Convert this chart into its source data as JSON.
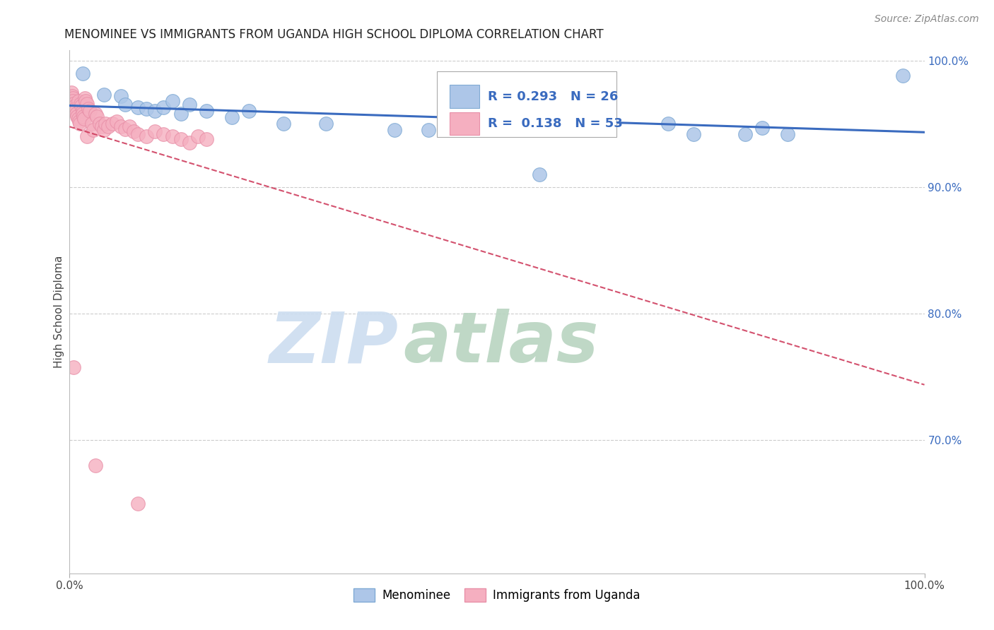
{
  "title": "MENOMINEE VS IMMIGRANTS FROM UGANDA HIGH SCHOOL DIPLOMA CORRELATION CHART",
  "source_text": "Source: ZipAtlas.com",
  "ylabel": "High School Diploma",
  "x_min": 0.0,
  "x_max": 1.0,
  "y_min": 0.595,
  "y_max": 1.008,
  "y_tick_positions_right": [
    1.0,
    0.9,
    0.8,
    0.7
  ],
  "y_tick_labels_right": [
    "100.0%",
    "90.0%",
    "80.0%",
    "70.0%"
  ],
  "menominee_color": "#adc6e8",
  "uganda_color": "#f5afc0",
  "menominee_edge": "#80aad4",
  "uganda_edge": "#e890a8",
  "trend_blue": "#3a6bbf",
  "trend_pink": "#cc3355",
  "legend_label_blue": "Menominee",
  "legend_label_pink": "Immigrants from Uganda",
  "background_color": "#ffffff",
  "grid_color": "#cccccc",
  "watermark_zip_color": "#ccddf0",
  "watermark_atlas_color": "#b8d4c0",
  "menominee_x": [
    0.015,
    0.04,
    0.06,
    0.065,
    0.08,
    0.09,
    0.1,
    0.11,
    0.12,
    0.13,
    0.14,
    0.16,
    0.19,
    0.21,
    0.25,
    0.3,
    0.38,
    0.42,
    0.55,
    0.61,
    0.7,
    0.73,
    0.79,
    0.81,
    0.84,
    0.975
  ],
  "menominee_y": [
    0.99,
    0.973,
    0.972,
    0.965,
    0.963,
    0.962,
    0.96,
    0.963,
    0.968,
    0.958,
    0.965,
    0.96,
    0.955,
    0.96,
    0.95,
    0.95,
    0.945,
    0.945,
    0.91,
    0.963,
    0.95,
    0.942,
    0.942,
    0.947,
    0.942,
    0.988
  ],
  "uganda_x": [
    0.002,
    0.003,
    0.004,
    0.004,
    0.005,
    0.006,
    0.006,
    0.007,
    0.008,
    0.009,
    0.01,
    0.01,
    0.011,
    0.012,
    0.013,
    0.014,
    0.015,
    0.015,
    0.016,
    0.017,
    0.018,
    0.019,
    0.02,
    0.02,
    0.022,
    0.024,
    0.026,
    0.028,
    0.03,
    0.032,
    0.035,
    0.038,
    0.04,
    0.042,
    0.045,
    0.05,
    0.055,
    0.06,
    0.065,
    0.07,
    0.075,
    0.08,
    0.09,
    0.1,
    0.11,
    0.12,
    0.13,
    0.14,
    0.15,
    0.16,
    0.005,
    0.03,
    0.08
  ],
  "uganda_y": [
    0.975,
    0.972,
    0.97,
    0.968,
    0.966,
    0.964,
    0.962,
    0.96,
    0.958,
    0.956,
    0.954,
    0.968,
    0.952,
    0.95,
    0.966,
    0.964,
    0.96,
    0.958,
    0.956,
    0.954,
    0.97,
    0.968,
    0.966,
    0.94,
    0.962,
    0.96,
    0.95,
    0.945,
    0.958,
    0.956,
    0.95,
    0.948,
    0.945,
    0.95,
    0.948,
    0.95,
    0.952,
    0.948,
    0.946,
    0.948,
    0.944,
    0.942,
    0.94,
    0.944,
    0.942,
    0.94,
    0.938,
    0.935,
    0.94,
    0.938,
    0.758,
    0.68,
    0.65
  ]
}
